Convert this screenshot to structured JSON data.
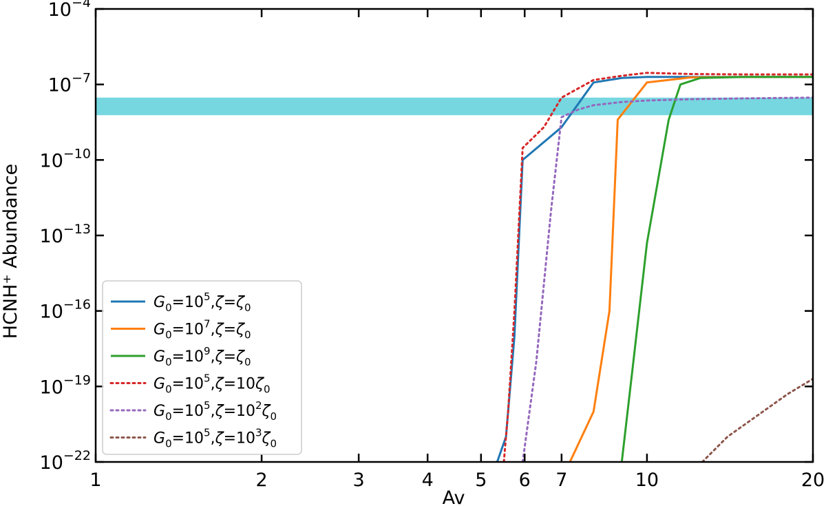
{
  "chart_data": {
    "type": "line",
    "title": "",
    "xlabel": "Av",
    "ylabel": "HCNH⁺ Abundance",
    "x_scale": "log",
    "y_scale": "log",
    "xlim": [
      1,
      20
    ],
    "ylim": [
      1e-22,
      0.0001
    ],
    "x_ticks": [
      {
        "value": 1,
        "label": "1"
      },
      {
        "value": 2,
        "label": "2"
      },
      {
        "value": 3,
        "label": "3"
      },
      {
        "value": 4,
        "label": "4"
      },
      {
        "value": 5,
        "label": "5"
      },
      {
        "value": 6,
        "label": "6"
      },
      {
        "value": 7,
        "label": "7"
      },
      {
        "value": 10,
        "label": "10"
      },
      {
        "value": 20,
        "label": "20"
      }
    ],
    "y_ticks": [
      {
        "value": 1e-22,
        "base": "10",
        "exp": "−22"
      },
      {
        "value": 1e-19,
        "base": "10",
        "exp": "−19"
      },
      {
        "value": 1e-16,
        "base": "10",
        "exp": "−16"
      },
      {
        "value": 1e-13,
        "base": "10",
        "exp": "−13"
      },
      {
        "value": 1e-10,
        "base": "10",
        "exp": "−10"
      },
      {
        "value": 1e-07,
        "base": "10",
        "exp": "−7"
      },
      {
        "value": 0.0001,
        "base": "10",
        "exp": "−4"
      }
    ],
    "observed_band": {
      "y_min": 6e-09,
      "y_max": 3e-08,
      "color": "#76d7e0"
    },
    "grid": false,
    "legend_position": "lower-left",
    "series": [
      {
        "name": "G0=10^5,ζ=ζ0",
        "legend": {
          "g_exp": "5",
          "zeta_pre": ""
        },
        "color": "#1f77b4",
        "dash": "solid",
        "x": [
          5.35,
          5.55,
          5.75,
          5.95,
          7.0,
          8.0,
          9.0,
          10.0,
          12.0,
          15.0,
          20.0
        ],
        "y": [
          1e-22,
          1e-21,
          1e-17,
          1e-10,
          2e-09,
          1.2e-07,
          1.8e-07,
          2e-07,
          2e-07,
          2e-07,
          2e-07
        ]
      },
      {
        "name": "G0=10^7,ζ=ζ0",
        "legend": {
          "g_exp": "7",
          "zeta_pre": ""
        },
        "color": "#ff7f0e",
        "dash": "solid",
        "x": [
          7.25,
          8.0,
          8.55,
          8.85,
          10.0,
          12.0,
          15.0,
          20.0
        ],
        "y": [
          1e-22,
          1e-20,
          1e-16,
          4e-09,
          1.2e-07,
          1.9e-07,
          2e-07,
          2e-07
        ]
      },
      {
        "name": "G0=10^9,ζ=ζ0",
        "legend": {
          "g_exp": "9",
          "zeta_pre": ""
        },
        "color": "#2ca02c",
        "dash": "solid",
        "x": [
          9.0,
          9.45,
          10.0,
          10.95,
          11.5,
          12.5,
          15.0,
          20.0
        ],
        "y": [
          1e-22,
          1e-18,
          5e-14,
          4e-09,
          1e-07,
          1.8e-07,
          2e-07,
          2e-07
        ]
      },
      {
        "name": "G0=10^5,ζ=10ζ0",
        "legend": {
          "g_exp": "5",
          "zeta_pre": "10"
        },
        "color": "#d62728",
        "dash": "dotted",
        "x": [
          5.5,
          5.6,
          5.75,
          5.95,
          6.5,
          7.0,
          8.0,
          9.0,
          10.0,
          12.0,
          15.0,
          20.0
        ],
        "y": [
          1e-22,
          1e-20,
          1e-16,
          3e-10,
          2e-09,
          3e-08,
          1.5e-07,
          2.2e-07,
          2.9e-07,
          2.6e-07,
          2.5e-07,
          2.5e-07
        ]
      },
      {
        "name": "G0=10^5,ζ=10^2ζ0",
        "legend": {
          "g_exp": "5",
          "zeta_pre": "10",
          "zeta_exp": "2"
        },
        "color": "#9467bd",
        "dash": "dotted",
        "x": [
          5.95,
          6.3,
          6.7,
          7.0,
          7.5,
          8.0,
          9.0,
          10.0,
          12.0,
          15.0,
          20.0
        ],
        "y": [
          1e-22,
          1e-18,
          1e-12,
          5e-09,
          1e-08,
          1.5e-08,
          2e-08,
          2.3e-08,
          2.6e-08,
          2.8e-08,
          3e-08
        ]
      },
      {
        "name": "G0=10^5,ζ=10^3ζ0",
        "legend": {
          "g_exp": "5",
          "zeta_pre": "10",
          "zeta_exp": "3"
        },
        "color": "#8c564b",
        "dash": "dotted",
        "x": [
          12.6,
          14.0,
          16.0,
          18.0,
          20.0
        ],
        "y": [
          1e-22,
          1e-21,
          8e-21,
          5e-20,
          2e-19
        ]
      }
    ]
  }
}
